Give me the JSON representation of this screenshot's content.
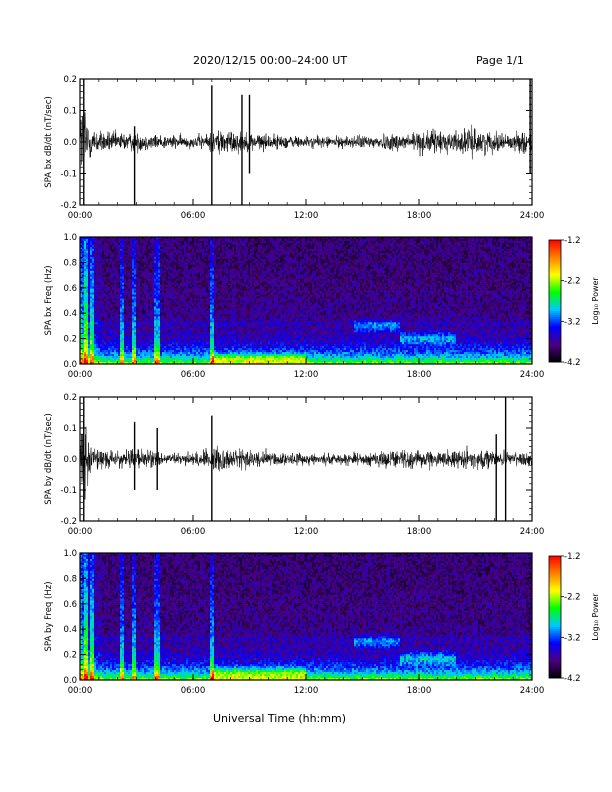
{
  "header": {
    "title": "2020/12/15  00:00–24:00 UT",
    "page_label": "Page 1/1"
  },
  "x_axis_title": "Universal Time (hh:mm)",
  "colorbar": {
    "label": "Log₁₀ Power",
    "ticks": [
      "-1.2",
      "-2.2",
      "-3.2",
      "-4.2"
    ],
    "range": [
      -4.2,
      -1.2
    ],
    "colors": [
      "#000000",
      "#4b0082",
      "#0000ff",
      "#00c8ff",
      "#00ff00",
      "#ffff00",
      "#ff8000",
      "#ff0000"
    ]
  },
  "chart_data": [
    {
      "type": "line",
      "ylabel": "SPA bx dB/dt (nT/sec)",
      "xlim": [
        0,
        24
      ],
      "ylim": [
        -0.2,
        0.2
      ],
      "x_ticks": [
        "00:00",
        "06:00",
        "12:00",
        "18:00",
        "24:00"
      ],
      "y_ticks": [
        "0.2",
        "0.1",
        "0.0",
        "-0.1",
        "-0.2"
      ],
      "envelope": {
        "x": [
          0,
          0.3,
          0.6,
          1,
          2,
          3,
          4,
          5,
          6,
          7,
          7.3,
          8,
          9,
          10,
          11,
          12,
          13,
          14,
          15,
          16,
          17,
          18,
          19,
          20,
          21,
          22,
          23,
          23.5,
          24
        ],
        "amplitude": [
          0.2,
          0.2,
          0.08,
          0.06,
          0.05,
          0.05,
          0.04,
          0.035,
          0.03,
          0.05,
          0.08,
          0.06,
          0.05,
          0.04,
          0.035,
          0.03,
          0.03,
          0.03,
          0.035,
          0.04,
          0.05,
          0.06,
          0.06,
          0.06,
          0.07,
          0.05,
          0.04,
          0.06,
          0.05
        ]
      },
      "spikes": [
        {
          "x": 0.2,
          "min": -0.2,
          "max": 0.2
        },
        {
          "x": 2.9,
          "min": -0.2,
          "max": 0.05
        },
        {
          "x": 7.0,
          "min": -0.2,
          "max": 0.18
        },
        {
          "x": 8.6,
          "min": -0.2,
          "max": 0.15
        },
        {
          "x": 9.0,
          "min": -0.1,
          "max": 0.15
        },
        {
          "x": 23.9,
          "min": -0.1,
          "max": 0.2
        }
      ]
    },
    {
      "type": "heatmap",
      "ylabel": "SPA bx Freq (Hz)",
      "xlim": [
        0,
        24
      ],
      "ylim": [
        0,
        1.0
      ],
      "x_ticks": [
        "00:00",
        "06:00",
        "12:00",
        "18:00",
        "24:00"
      ],
      "y_ticks": [
        "1.0",
        "0.8",
        "0.6",
        "0.4",
        "0.2",
        "0.0"
      ],
      "vertical_bands_hr": [
        0.3,
        0.6,
        2.2,
        2.9,
        4.1,
        7.0
      ],
      "horizontal_band_hz": 0.32,
      "features": [
        {
          "x_start": 14.5,
          "x_end": 17.0,
          "f_low": 0.25,
          "f_high": 0.35
        },
        {
          "x_start": 17.0,
          "x_end": 20.0,
          "f_low": 0.15,
          "f_high": 0.25
        },
        {
          "x_start": 7.0,
          "x_end": 12.0,
          "f_low": 0.0,
          "f_high": 0.08
        }
      ]
    },
    {
      "type": "line",
      "ylabel": "SPA by dB/dt (nT/sec)",
      "xlim": [
        0,
        24
      ],
      "ylim": [
        -0.2,
        0.2
      ],
      "x_ticks": [
        "00:00",
        "06:00",
        "12:00",
        "18:00",
        "24:00"
      ],
      "y_ticks": [
        "0.2",
        "0.1",
        "0.0",
        "-0.1",
        "-0.2"
      ],
      "envelope": {
        "x": [
          0,
          0.3,
          0.6,
          1,
          2,
          3,
          4,
          5,
          6,
          7,
          7.3,
          8,
          9,
          10,
          11,
          12,
          13,
          14,
          15,
          16,
          17,
          18,
          19,
          20,
          21,
          22,
          23,
          23.5,
          24
        ],
        "amplitude": [
          0.2,
          0.18,
          0.08,
          0.05,
          0.04,
          0.06,
          0.04,
          0.03,
          0.03,
          0.06,
          0.07,
          0.06,
          0.05,
          0.04,
          0.035,
          0.03,
          0.03,
          0.03,
          0.035,
          0.04,
          0.05,
          0.05,
          0.04,
          0.05,
          0.05,
          0.04,
          0.03,
          0.05,
          0.04
        ]
      },
      "spikes": [
        {
          "x": 0.2,
          "min": -0.2,
          "max": 0.2
        },
        {
          "x": 2.9,
          "min": -0.1,
          "max": 0.12
        },
        {
          "x": 4.1,
          "min": -0.1,
          "max": 0.1
        },
        {
          "x": 7.0,
          "min": -0.2,
          "max": 0.14
        },
        {
          "x": 22.1,
          "min": -0.2,
          "max": 0.08
        },
        {
          "x": 22.6,
          "min": -0.2,
          "max": 0.2
        }
      ]
    },
    {
      "type": "heatmap",
      "ylabel": "SPA by Freq (Hz)",
      "xlim": [
        0,
        24
      ],
      "ylim": [
        0,
        1.0
      ],
      "x_ticks": [
        "00:00",
        "06:00",
        "12:00",
        "18:00",
        "24:00"
      ],
      "y_ticks": [
        "1.0",
        "0.8",
        "0.6",
        "0.4",
        "0.2",
        "0.0"
      ],
      "vertical_bands_hr": [
        0.3,
        0.6,
        2.2,
        2.9,
        4.1,
        7.0
      ],
      "horizontal_band_hz": 0.32,
      "features": [
        {
          "x_start": 14.5,
          "x_end": 17.0,
          "f_low": 0.25,
          "f_high": 0.35
        },
        {
          "x_start": 17.0,
          "x_end": 20.0,
          "f_low": 0.12,
          "f_high": 0.22
        },
        {
          "x_start": 7.0,
          "x_end": 12.0,
          "f_low": 0.0,
          "f_high": 0.1
        }
      ]
    }
  ]
}
